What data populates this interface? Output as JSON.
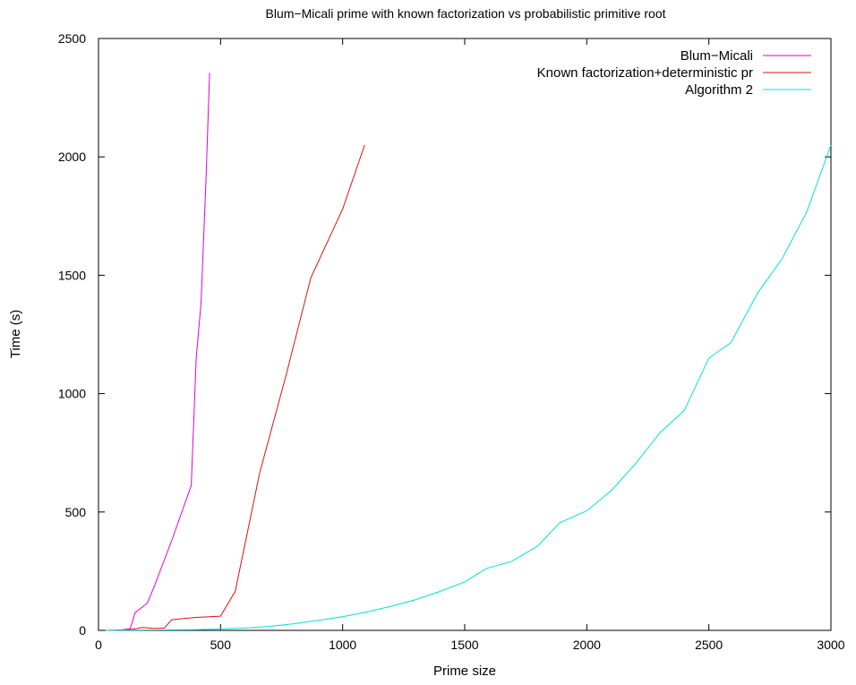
{
  "chart_data": {
    "type": "line",
    "title": "Blum−Micali prime with known factorization vs probabilistic primitive root",
    "xlabel": "Prime size",
    "ylabel": "Time (s)",
    "xlim": [
      0,
      3000
    ],
    "ylim": [
      0,
      2500
    ],
    "xticks": [
      0,
      500,
      1000,
      1500,
      2000,
      2500,
      3000
    ],
    "yticks": [
      0,
      500,
      1000,
      1500,
      2000,
      2500
    ],
    "grid": false,
    "legend_position": "top-right",
    "series": [
      {
        "name": "Blum−Micali",
        "color": "#e000e0",
        "points": [
          [
            30,
            0
          ],
          [
            70,
            1
          ],
          [
            100,
            3
          ],
          [
            130,
            7
          ],
          [
            150,
            75
          ],
          [
            200,
            115
          ],
          [
            230,
            190
          ],
          [
            300,
            380
          ],
          [
            380,
            612
          ],
          [
            400,
            1150
          ],
          [
            420,
            1380
          ],
          [
            440,
            1900
          ],
          [
            455,
            2355
          ]
        ]
      },
      {
        "name": "Known factorization+deterministic pr",
        "color": "#e01010",
        "points": [
          [
            30,
            0
          ],
          [
            100,
            2
          ],
          [
            140,
            5
          ],
          [
            180,
            12
          ],
          [
            230,
            8
          ],
          [
            270,
            10
          ],
          [
            300,
            45
          ],
          [
            350,
            50
          ],
          [
            400,
            55
          ],
          [
            500,
            60
          ],
          [
            560,
            165
          ],
          [
            660,
            665
          ],
          [
            770,
            1085
          ],
          [
            870,
            1490
          ],
          [
            1000,
            1780
          ],
          [
            1090,
            2050
          ]
        ]
      },
      {
        "name": "Algorithm 2",
        "color": "#00e0e0",
        "points": [
          [
            30,
            0
          ],
          [
            400,
            3
          ],
          [
            500,
            6
          ],
          [
            600,
            10
          ],
          [
            700,
            17
          ],
          [
            800,
            28
          ],
          [
            900,
            42
          ],
          [
            1000,
            58
          ],
          [
            1100,
            78
          ],
          [
            1200,
            102
          ],
          [
            1300,
            130
          ],
          [
            1400,
            165
          ],
          [
            1500,
            205
          ],
          [
            1590,
            262
          ],
          [
            1690,
            290
          ],
          [
            1800,
            357
          ],
          [
            1890,
            455
          ],
          [
            2000,
            505
          ],
          [
            2100,
            590
          ],
          [
            2200,
            705
          ],
          [
            2300,
            835
          ],
          [
            2400,
            930
          ],
          [
            2500,
            1150
          ],
          [
            2590,
            1215
          ],
          [
            2700,
            1425
          ],
          [
            2800,
            1570
          ],
          [
            2900,
            1765
          ],
          [
            3000,
            2050
          ]
        ]
      }
    ]
  }
}
